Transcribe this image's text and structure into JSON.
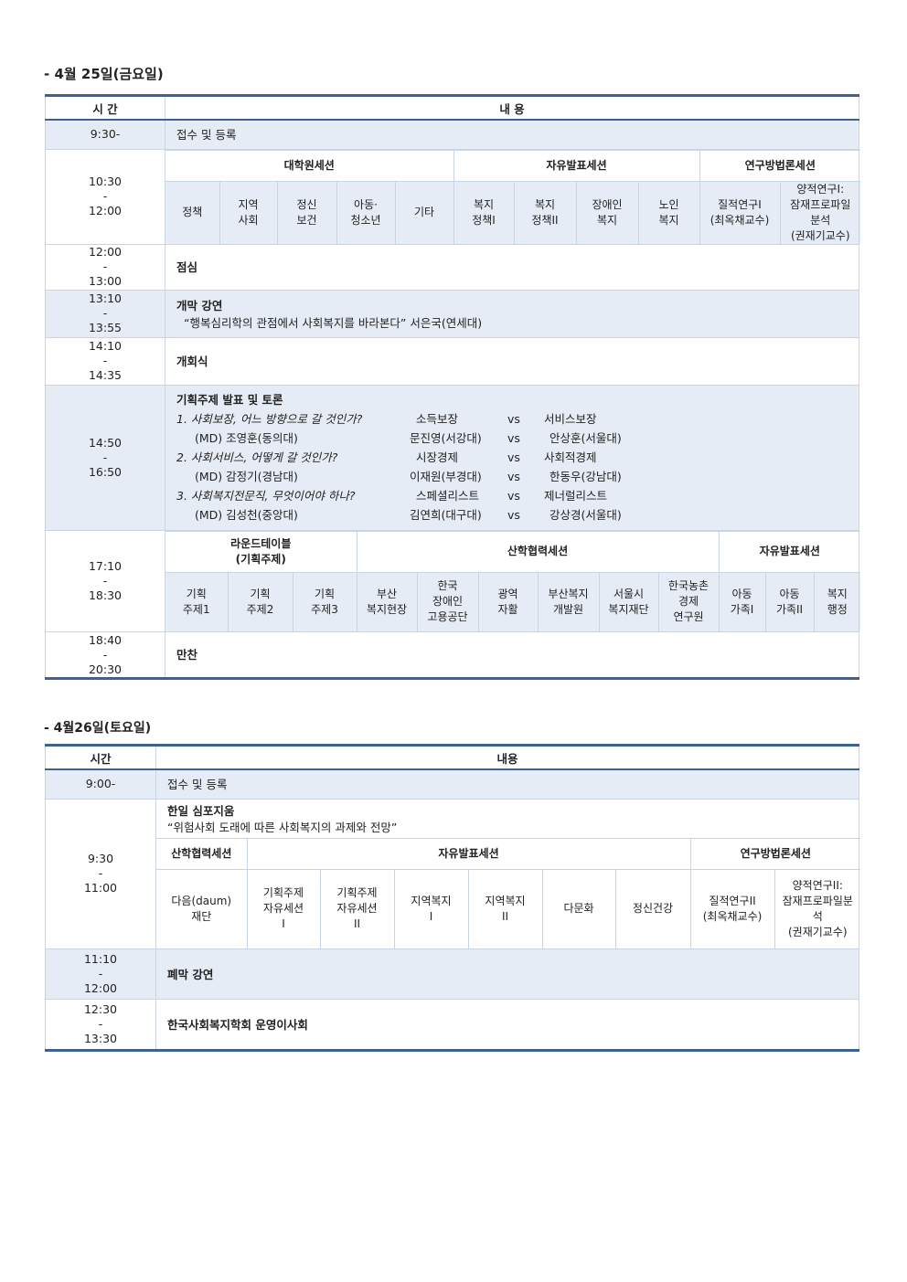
{
  "day1": {
    "title": "- 4월 25일(금요일)",
    "header": {
      "time": "시 간",
      "content": "내 용"
    },
    "rows": {
      "r1": {
        "time": "9:30-",
        "text": "접수 및 등록"
      },
      "r2": {
        "time": [
          "10:30",
          "-",
          "12:00"
        ],
        "groups": [
          {
            "label": "대학원세션",
            "span": 5
          },
          {
            "label": "자유발표세션",
            "span": 4
          },
          {
            "label": "연구방법론세션",
            "span": 2
          }
        ],
        "sessions": [
          "정책",
          "지역\n사회",
          "정신\n보건",
          "아동·\n청소년",
          "기타",
          "복지\n정책I",
          "복지\n정책II",
          "장애인\n복지",
          "노인\n복지",
          "질적연구I\n(최옥채교수)",
          "양적연구I:\n잠재프로파일\n분석\n(권재기교수)"
        ]
      },
      "r3": {
        "time": [
          "12:00",
          "-",
          "13:00"
        ],
        "text": "점심"
      },
      "r4": {
        "time": [
          "13:10",
          "-",
          "13:55"
        ],
        "title": "개막 강연",
        "text": "“행복심리학의 관점에서 사회복지를 바라본다” 서은국(연세대)"
      },
      "r5": {
        "time": [
          "14:10",
          "-",
          "14:35"
        ],
        "text": "개회식"
      },
      "r6": {
        "time": [
          "14:50",
          "-",
          "16:50"
        ],
        "title": "기획주제 발표 및 토론",
        "topics": [
          {
            "q": "1. 사회보장, 어느 방향으로 갈 것인가?",
            "a": "소득보장",
            "vs": "vs",
            "b": "서비스보장",
            "md": "(MD) 조영훈(동의대)",
            "pa": "문진영(서강대)",
            "pb": "안상훈(서울대)"
          },
          {
            "q": "2. 사회서비스, 어떻게 갈 것인가?",
            "a": "시장경제",
            "vs": "vs",
            "b": "사회적경제",
            "md": "(MD) 감정기(경남대)",
            "pa": "이재원(부경대)",
            "pb": "한동우(강남대)"
          },
          {
            "q": "3. 사회복지전문직, 무엇이어야 하나?",
            "a": "스페셜리스트",
            "vs": "vs",
            "b": "제너럴리스트",
            "md": "(MD) 김성천(중앙대)",
            "pa": "김연희(대구대)",
            "pb": "강상경(서울대)"
          }
        ]
      },
      "r7": {
        "time": [
          "17:10",
          "-",
          "18:30"
        ],
        "groups": [
          {
            "label": "라운드테이블\n(기획주제)",
            "span": 3
          },
          {
            "label": "산학협력세션",
            "span": 6
          },
          {
            "label": "자유발표세션",
            "span": 3
          }
        ],
        "sessions": [
          "기획\n주제1",
          "기획\n주제2",
          "기획\n주제3",
          "부산\n복지현장",
          "한국\n장애인\n고용공단",
          "광역\n자활",
          "부산복지\n개발원",
          "서울시\n복지재단",
          "한국농촌\n경제\n연구원",
          "아동\n가족I",
          "아동\n가족II",
          "복지\n행정"
        ]
      },
      "r8": {
        "time": [
          "18:40",
          "-",
          "20:30"
        ],
        "text": "만찬"
      }
    }
  },
  "day2": {
    "title": "- 4월26일(토요일)",
    "header": {
      "time": "시간",
      "content": "내용"
    },
    "rows": {
      "r1": {
        "time": "9:00-",
        "text": "접수 및 등록"
      },
      "r2": {
        "time": [
          "9:30",
          "-",
          "11:00"
        ],
        "title": "한일 심포지움",
        "text": "“위험사회 도래에 따른 사회복지의 과제와 전망”",
        "groups": [
          {
            "label": "산학협력세션",
            "span": 1
          },
          {
            "label": "자유발표세션",
            "span": 6
          },
          {
            "label": "연구방법론세션",
            "span": 2
          }
        ],
        "sessions": [
          "다음(daum)\n재단",
          "기획주제\n자유세션\nI",
          "기획주제\n자유세션\nII",
          "지역복지\nI",
          "지역복지\nII",
          "다문화",
          "정신건강",
          "질적연구II\n(최옥채교수)",
          "양적연구II:\n잠재프로파일분\n석\n(권재기교수)"
        ]
      },
      "r3": {
        "time": [
          "11:10",
          "-",
          "12:00"
        ],
        "text": "폐막 강연"
      },
      "r4": {
        "time": [
          "12:30",
          "-",
          "13:30"
        ],
        "text": "한국사회복지학회 운영이사회"
      }
    }
  },
  "colors": {
    "rule": "#3d6190",
    "grid": "#c9d5e3",
    "shade": "#e6ecf5"
  }
}
